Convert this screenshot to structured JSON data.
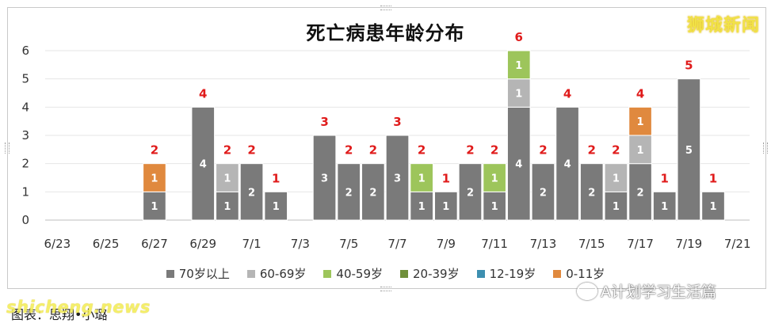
{
  "brand": "狮城新闻",
  "watermark": "shicheng.news",
  "account": "A计划学习生活篇",
  "source_note": "图表：思翔•小璐",
  "colors": {
    "70+": "#7a7a7a",
    "60-69": "#b5b5b5",
    "40-59": "#9dc55b",
    "20-39": "#6f8f3a",
    "12-19": "#3d8fb0",
    "0-11": "#e0893e",
    "total_label": "#e01b1b",
    "grid": "#e6e6e6"
  },
  "chart_data": {
    "type": "bar",
    "stacked": true,
    "title": "死亡病患年龄分布",
    "xlabel": "",
    "ylabel": "",
    "ylim": [
      0,
      6
    ],
    "yticks": [
      0,
      1,
      2,
      3,
      4,
      5,
      6
    ],
    "grid": true,
    "legend_position": "bottom",
    "categories": [
      "6/23",
      "6/24",
      "6/25",
      "6/26",
      "6/27",
      "6/28",
      "6/29",
      "6/30",
      "7/1",
      "7/2",
      "7/3",
      "7/4",
      "7/5",
      "7/6",
      "7/7",
      "7/8",
      "7/9",
      "7/10",
      "7/11",
      "7/12",
      "7/13",
      "7/14",
      "7/15",
      "7/16",
      "7/17",
      "7/18",
      "7/19",
      "7/20",
      "7/21"
    ],
    "xtick_labels": [
      "6/23",
      "6/25",
      "6/27",
      "6/29",
      "7/1",
      "7/3",
      "7/5",
      "7/7",
      "7/9",
      "7/11",
      "7/13",
      "7/15",
      "7/17",
      "7/19",
      "7/21"
    ],
    "series": [
      {
        "name": "70岁以上",
        "key": "70+",
        "values": [
          0,
          0,
          0,
          0,
          1,
          0,
          4,
          1,
          2,
          1,
          0,
          3,
          2,
          2,
          3,
          1,
          1,
          2,
          1,
          4,
          2,
          4,
          2,
          1,
          2,
          1,
          5,
          1,
          0
        ]
      },
      {
        "name": "60-69岁",
        "key": "60-69",
        "values": [
          0,
          0,
          0,
          0,
          0,
          0,
          0,
          1,
          0,
          0,
          0,
          0,
          0,
          0,
          0,
          0,
          0,
          0,
          0,
          1,
          0,
          0,
          0,
          1,
          1,
          0,
          0,
          0,
          0
        ]
      },
      {
        "name": "40-59岁",
        "key": "40-59",
        "values": [
          0,
          0,
          0,
          0,
          0,
          0,
          0,
          0,
          0,
          0,
          0,
          0,
          0,
          0,
          0,
          1,
          0,
          0,
          1,
          1,
          0,
          0,
          0,
          0,
          0,
          0,
          0,
          0,
          0
        ]
      },
      {
        "name": "20-39岁",
        "key": "20-39",
        "values": [
          0,
          0,
          0,
          0,
          0,
          0,
          0,
          0,
          0,
          0,
          0,
          0,
          0,
          0,
          0,
          0,
          0,
          0,
          0,
          0,
          0,
          0,
          0,
          0,
          0,
          0,
          0,
          0,
          0
        ]
      },
      {
        "name": "12-19岁",
        "key": "12-19",
        "values": [
          0,
          0,
          0,
          0,
          0,
          0,
          0,
          0,
          0,
          0,
          0,
          0,
          0,
          0,
          0,
          0,
          0,
          0,
          0,
          0,
          0,
          0,
          0,
          0,
          0,
          0,
          0,
          0,
          0
        ]
      },
      {
        "name": "0-11岁",
        "key": "0-11",
        "values": [
          0,
          0,
          0,
          0,
          1,
          0,
          0,
          0,
          0,
          0,
          0,
          0,
          0,
          0,
          0,
          0,
          0,
          0,
          0,
          0,
          0,
          0,
          0,
          0,
          1,
          0,
          0,
          0,
          0
        ]
      }
    ],
    "totals": [
      0,
      0,
      0,
      0,
      2,
      0,
      4,
      2,
      2,
      1,
      0,
      3,
      2,
      2,
      3,
      2,
      1,
      2,
      2,
      6,
      2,
      4,
      2,
      2,
      4,
      1,
      5,
      1,
      0
    ]
  }
}
